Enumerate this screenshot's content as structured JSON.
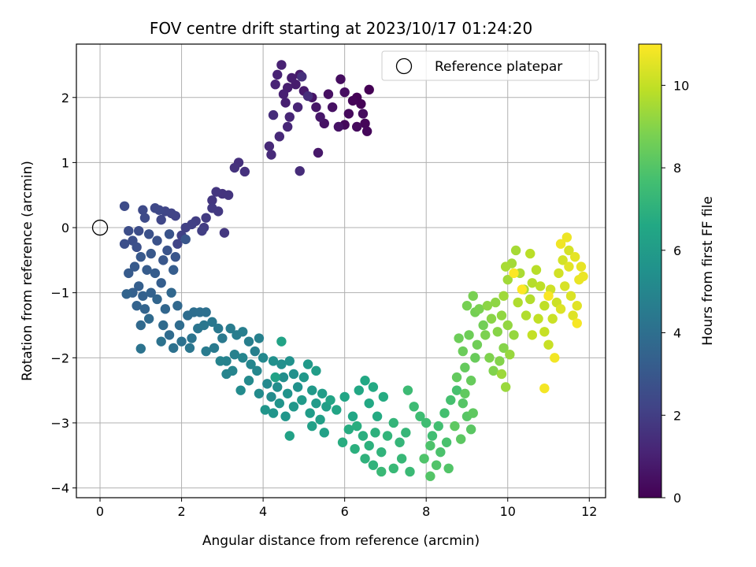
{
  "chart_data": {
    "type": "scatter",
    "title": "FOV centre drift starting at 2023/10/17 01:24:20",
    "xlabel": "Angular distance from reference (arcmin)",
    "ylabel": "Rotation from reference (arcmin)",
    "xlim": [
      -0.58,
      12.4
    ],
    "ylim": [
      -4.15,
      2.82
    ],
    "xticks": [
      0,
      2,
      4,
      6,
      8,
      10,
      12
    ],
    "yticks": [
      -4,
      -3,
      -2,
      -1,
      0,
      1,
      2
    ],
    "grid": true,
    "legend": {
      "placement": "top-right",
      "entries": [
        "Reference platepar"
      ]
    },
    "reference_point": {
      "x": 0,
      "y": 0
    },
    "colorbar": {
      "label": "Hours from first FF file",
      "range": [
        0,
        11
      ],
      "ticks": [
        0,
        2,
        4,
        6,
        8,
        10
      ],
      "colormap": "viridis"
    },
    "series": [
      {
        "points": [
          [
            6.6,
            2.12
          ],
          [
            6.3,
            2.0
          ],
          [
            6.4,
            1.9
          ],
          [
            6.2,
            1.95
          ],
          [
            6.5,
            1.6
          ],
          [
            6.55,
            1.48
          ],
          [
            6.0,
            1.58
          ],
          [
            6.1,
            1.75
          ],
          [
            6.3,
            1.55
          ],
          [
            6.45,
            1.75
          ],
          [
            5.9,
            2.28
          ],
          [
            6.0,
            2.08
          ],
          [
            5.6,
            2.05
          ],
          [
            5.7,
            1.85
          ],
          [
            5.5,
            1.6
          ],
          [
            5.85,
            1.55
          ],
          [
            5.2,
            2.0
          ],
          [
            5.3,
            1.85
          ],
          [
            5.4,
            1.7
          ],
          [
            5.35,
            1.15
          ],
          [
            4.9,
            2.35
          ],
          [
            5.0,
            2.1
          ],
          [
            4.8,
            2.2
          ],
          [
            4.7,
            2.3
          ],
          [
            4.6,
            2.15
          ],
          [
            4.55,
            1.92
          ],
          [
            4.5,
            2.05
          ],
          [
            4.45,
            2.5
          ],
          [
            4.35,
            2.35
          ],
          [
            4.3,
            2.2
          ],
          [
            4.85,
            1.85
          ],
          [
            4.65,
            1.7
          ],
          [
            4.6,
            1.55
          ],
          [
            4.4,
            1.4
          ],
          [
            4.15,
            1.25
          ],
          [
            4.2,
            1.12
          ],
          [
            4.9,
            0.87
          ],
          [
            4.25,
            1.73
          ],
          [
            5.1,
            2.02
          ],
          [
            4.95,
            2.32
          ],
          [
            3.4,
            1.0
          ],
          [
            3.55,
            0.86
          ],
          [
            3.3,
            0.92
          ],
          [
            3.0,
            0.52
          ],
          [
            3.15,
            0.5
          ],
          [
            2.85,
            0.55
          ],
          [
            2.75,
            0.42
          ],
          [
            3.05,
            -0.08
          ],
          [
            2.9,
            0.25
          ],
          [
            2.75,
            0.3
          ],
          [
            2.6,
            0.15
          ],
          [
            2.55,
            0.0
          ],
          [
            2.35,
            0.1
          ],
          [
            2.5,
            -0.05
          ],
          [
            2.25,
            0.05
          ],
          [
            2.1,
            0.0
          ],
          [
            2.0,
            -0.12
          ],
          [
            1.85,
            0.18
          ],
          [
            1.75,
            0.22
          ],
          [
            1.9,
            -0.25
          ],
          [
            1.6,
            0.25
          ],
          [
            1.5,
            0.12
          ],
          [
            1.45,
            0.27
          ],
          [
            1.35,
            0.3
          ],
          [
            1.05,
            0.27
          ],
          [
            1.1,
            0.15
          ],
          [
            0.6,
            0.33
          ],
          [
            0.95,
            -0.05
          ],
          [
            0.7,
            -0.05
          ],
          [
            0.8,
            -0.2
          ],
          [
            0.6,
            -0.25
          ],
          [
            0.9,
            -0.3
          ],
          [
            1.2,
            -0.1
          ],
          [
            1.4,
            -0.2
          ],
          [
            1.7,
            -0.1
          ],
          [
            1.65,
            -0.35
          ],
          [
            1.85,
            -0.45
          ],
          [
            2.1,
            -0.18
          ],
          [
            1.55,
            -0.5
          ],
          [
            1.25,
            -0.4
          ],
          [
            1.0,
            -0.45
          ],
          [
            0.85,
            -0.6
          ],
          [
            0.7,
            -0.7
          ],
          [
            1.15,
            -0.65
          ],
          [
            1.35,
            -0.7
          ],
          [
            1.8,
            -0.65
          ],
          [
            1.5,
            -0.85
          ],
          [
            0.95,
            -0.9
          ],
          [
            0.8,
            -1.0
          ],
          [
            1.05,
            -1.05
          ],
          [
            1.25,
            -1.0
          ],
          [
            0.9,
            -1.2
          ],
          [
            0.65,
            -1.02
          ],
          [
            1.1,
            -1.25
          ],
          [
            1.4,
            -1.1
          ],
          [
            1.6,
            -1.25
          ],
          [
            1.75,
            -1.0
          ],
          [
            1.9,
            -1.2
          ],
          [
            1.0,
            -1.5
          ],
          [
            1.2,
            -1.4
          ],
          [
            1.55,
            -1.5
          ],
          [
            1.7,
            -1.65
          ],
          [
            1.95,
            -1.5
          ],
          [
            2.15,
            -1.35
          ],
          [
            2.3,
            -1.3
          ],
          [
            2.45,
            -1.3
          ],
          [
            2.6,
            -1.3
          ],
          [
            2.0,
            -1.75
          ],
          [
            1.8,
            -1.85
          ],
          [
            1.5,
            -1.75
          ],
          [
            1.0,
            -1.86
          ],
          [
            2.25,
            -1.7
          ],
          [
            2.4,
            -1.55
          ],
          [
            2.2,
            -1.85
          ],
          [
            2.55,
            -1.5
          ],
          [
            2.75,
            -1.45
          ],
          [
            2.9,
            -1.55
          ],
          [
            3.0,
            -1.7
          ],
          [
            2.8,
            -1.85
          ],
          [
            2.6,
            -1.9
          ],
          [
            3.2,
            -1.55
          ],
          [
            3.35,
            -1.65
          ],
          [
            3.5,
            -1.6
          ],
          [
            3.65,
            -1.75
          ],
          [
            3.8,
            -1.9
          ],
          [
            3.9,
            -1.7
          ],
          [
            3.3,
            -1.95
          ],
          [
            3.1,
            -2.05
          ],
          [
            2.95,
            -2.05
          ],
          [
            3.1,
            -2.25
          ],
          [
            3.25,
            -2.2
          ],
          [
            3.5,
            -2.0
          ],
          [
            3.7,
            -2.1
          ],
          [
            3.85,
            -2.2
          ],
          [
            4.0,
            -2.0
          ],
          [
            4.1,
            -2.4
          ],
          [
            3.65,
            -2.35
          ],
          [
            3.45,
            -2.5
          ],
          [
            3.9,
            -2.55
          ],
          [
            4.2,
            -2.6
          ],
          [
            4.35,
            -2.45
          ],
          [
            4.5,
            -2.3
          ],
          [
            4.45,
            -2.1
          ],
          [
            4.25,
            -2.05
          ],
          [
            4.65,
            -2.05
          ],
          [
            4.75,
            -2.25
          ],
          [
            4.85,
            -2.45
          ],
          [
            4.6,
            -2.55
          ],
          [
            4.4,
            -2.7
          ],
          [
            4.25,
            -2.85
          ],
          [
            4.05,
            -2.8
          ],
          [
            4.55,
            -2.9
          ],
          [
            4.75,
            -2.75
          ],
          [
            5.0,
            -2.3
          ],
          [
            5.1,
            -2.1
          ],
          [
            5.2,
            -2.5
          ],
          [
            4.95,
            -2.65
          ],
          [
            5.3,
            -2.7
          ],
          [
            5.15,
            -2.85
          ],
          [
            5.45,
            -2.55
          ],
          [
            5.3,
            -2.2
          ],
          [
            5.55,
            -2.75
          ],
          [
            5.4,
            -2.95
          ],
          [
            5.2,
            -3.05
          ],
          [
            5.5,
            -3.15
          ],
          [
            4.65,
            -3.2
          ],
          [
            4.3,
            -2.3
          ],
          [
            4.45,
            -1.75
          ],
          [
            5.65,
            -2.65
          ],
          [
            5.8,
            -2.8
          ],
          [
            6.0,
            -2.6
          ],
          [
            6.2,
            -2.9
          ],
          [
            6.35,
            -2.5
          ],
          [
            6.5,
            -2.35
          ],
          [
            6.6,
            -2.7
          ],
          [
            6.7,
            -2.45
          ],
          [
            6.8,
            -2.9
          ],
          [
            6.95,
            -2.6
          ],
          [
            6.1,
            -3.1
          ],
          [
            5.95,
            -3.3
          ],
          [
            6.3,
            -3.05
          ],
          [
            6.45,
            -3.2
          ],
          [
            6.25,
            -3.4
          ],
          [
            6.6,
            -3.35
          ],
          [
            6.75,
            -3.15
          ],
          [
            6.5,
            -3.55
          ],
          [
            6.7,
            -3.65
          ],
          [
            6.9,
            -3.45
          ],
          [
            7.05,
            -3.2
          ],
          [
            7.2,
            -3.0
          ],
          [
            7.35,
            -3.3
          ],
          [
            7.5,
            -3.15
          ],
          [
            7.4,
            -3.55
          ],
          [
            7.2,
            -3.7
          ],
          [
            6.9,
            -3.75
          ],
          [
            7.6,
            -3.75
          ],
          [
            7.55,
            -2.5
          ],
          [
            7.7,
            -2.75
          ],
          [
            7.85,
            -2.9
          ],
          [
            8.0,
            -3.0
          ],
          [
            8.15,
            -3.2
          ],
          [
            8.3,
            -3.05
          ],
          [
            8.45,
            -2.85
          ],
          [
            8.6,
            -2.65
          ],
          [
            8.75,
            -2.5
          ],
          [
            8.5,
            -3.3
          ],
          [
            8.35,
            -3.45
          ],
          [
            8.1,
            -3.35
          ],
          [
            7.95,
            -3.55
          ],
          [
            8.25,
            -3.65
          ],
          [
            8.55,
            -3.7
          ],
          [
            8.1,
            -3.82
          ],
          [
            8.9,
            -2.7
          ],
          [
            9.0,
            -2.9
          ],
          [
            9.1,
            -3.1
          ],
          [
            8.85,
            -3.25
          ],
          [
            8.7,
            -3.05
          ],
          [
            9.15,
            -2.85
          ],
          [
            8.95,
            -2.55
          ],
          [
            8.75,
            -2.3
          ],
          [
            8.95,
            -2.15
          ],
          [
            9.1,
            -2.35
          ],
          [
            9.2,
            -2.0
          ],
          [
            8.9,
            -1.9
          ],
          [
            8.8,
            -1.7
          ],
          [
            9.05,
            -1.65
          ],
          [
            9.25,
            -1.8
          ],
          [
            9.4,
            -1.5
          ],
          [
            9.2,
            -1.3
          ],
          [
            9.0,
            -1.2
          ],
          [
            9.15,
            -1.05
          ],
          [
            9.3,
            -1.25
          ],
          [
            9.45,
            -1.65
          ],
          [
            9.55,
            -2.0
          ],
          [
            9.65,
            -2.2
          ],
          [
            9.8,
            -2.05
          ],
          [
            9.9,
            -1.85
          ],
          [
            9.75,
            -1.6
          ],
          [
            9.6,
            -1.4
          ],
          [
            9.5,
            -1.2
          ],
          [
            9.7,
            -1.15
          ],
          [
            9.85,
            -1.35
          ],
          [
            10.0,
            -1.5
          ],
          [
            10.15,
            -1.65
          ],
          [
            10.05,
            -1.95
          ],
          [
            9.95,
            -2.45
          ],
          [
            9.85,
            -2.25
          ],
          [
            9.9,
            -1.05
          ],
          [
            10.0,
            -0.8
          ],
          [
            10.1,
            -0.55
          ],
          [
            10.2,
            -0.35
          ],
          [
            9.95,
            -0.6
          ],
          [
            10.3,
            -0.7
          ],
          [
            10.4,
            -0.95
          ],
          [
            10.25,
            -1.15
          ],
          [
            10.45,
            -1.35
          ],
          [
            10.55,
            -1.1
          ],
          [
            10.6,
            -0.85
          ],
          [
            10.7,
            -0.65
          ],
          [
            10.55,
            -0.4
          ],
          [
            10.8,
            -0.9
          ],
          [
            10.9,
            -1.2
          ],
          [
            10.75,
            -1.4
          ],
          [
            10.6,
            -1.65
          ],
          [
            10.9,
            -1.6
          ],
          [
            11.0,
            -1.8
          ],
          [
            11.1,
            -1.4
          ],
          [
            11.2,
            -1.15
          ],
          [
            11.05,
            -0.95
          ],
          [
            11.25,
            -0.7
          ],
          [
            11.35,
            -0.5
          ],
          [
            11.5,
            -0.35
          ],
          [
            11.4,
            -0.9
          ],
          [
            11.55,
            -1.05
          ],
          [
            11.3,
            -1.25
          ],
          [
            11.6,
            -1.35
          ],
          [
            11.7,
            -1.2
          ],
          [
            11.5,
            -0.6
          ],
          [
            11.65,
            -0.45
          ],
          [
            11.8,
            -0.6
          ],
          [
            11.75,
            -0.8
          ],
          [
            11.85,
            -0.75
          ],
          [
            11.45,
            -0.15
          ],
          [
            11.3,
            -0.25
          ],
          [
            11.15,
            -2.0
          ],
          [
            10.9,
            -2.47
          ],
          [
            11.7,
            -1.47
          ],
          [
            11.0,
            -1.05
          ],
          [
            10.15,
            -0.7
          ],
          [
            10.35,
            -0.95
          ]
        ]
      }
    ]
  }
}
